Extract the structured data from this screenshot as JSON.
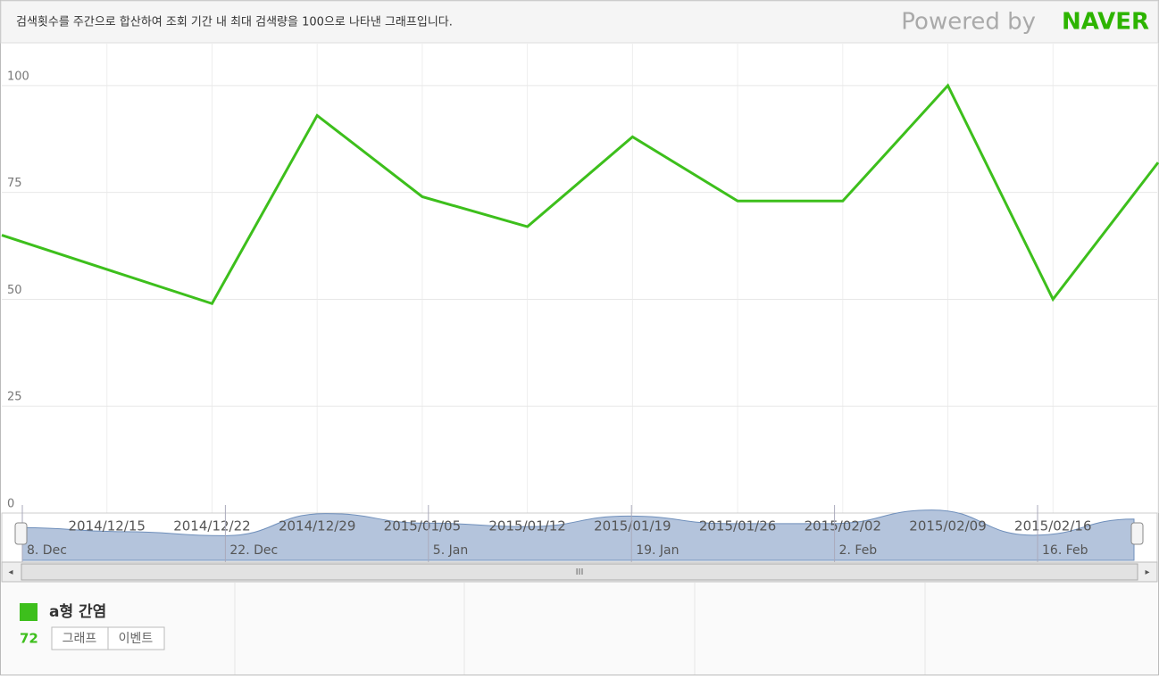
{
  "header": {
    "note": "검색횟수를 주간으로 합산하여 조회 기간 내 최대 검색량을 100으로 나타낸 그래프입니다.",
    "powered": "Powered by",
    "brand": "NAVER"
  },
  "chart_data": {
    "type": "line",
    "categories": [
      null,
      "2014/12/15",
      "2014/12/22",
      "2014/12/29",
      "2015/01/05",
      "2015/01/12",
      "2015/01/19",
      "2015/01/26",
      "2015/02/02",
      "2015/02/09",
      "2015/02/16",
      null
    ],
    "series": [
      {
        "name": "a형 간염",
        "color": "#3dbf1c",
        "values": [
          65,
          57,
          49,
          93,
          74,
          67,
          88,
          73,
          73,
          100,
          50,
          82
        ]
      }
    ],
    "ylim": [
      0,
      110
    ],
    "yticks": [
      0,
      25,
      50,
      75,
      100
    ],
    "grid": true
  },
  "navigator": {
    "labels": [
      "8. Dec",
      "22. Dec",
      "5. Jan",
      "19. Jan",
      "2. Feb",
      "16. Feb"
    ]
  },
  "legend": {
    "value": 72,
    "buttons": [
      "그래프",
      "이벤트"
    ]
  }
}
